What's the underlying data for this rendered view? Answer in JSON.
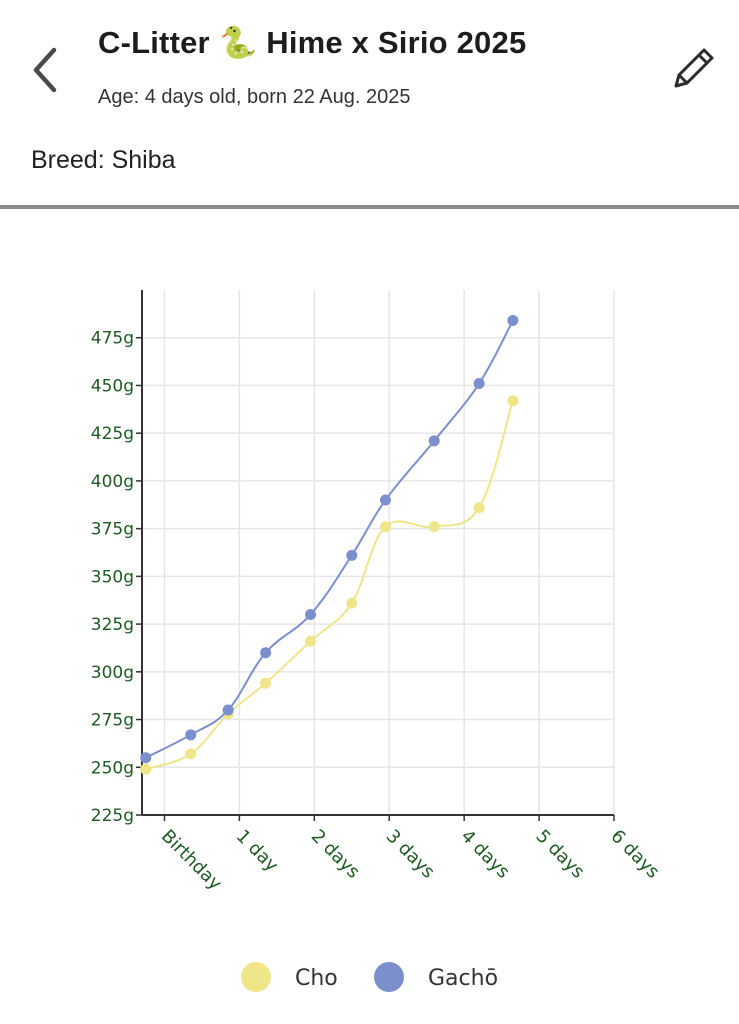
{
  "header": {
    "title": "C-Litter 🐍 Hime x Sirio 2025",
    "age": "Age: 4 days old, born 22 Aug. 2025",
    "breed": "Breed: Shiba",
    "back_icon": "chevron-left-icon",
    "edit_icon": "pencil-icon"
  },
  "chart_data": {
    "type": "line",
    "title": "",
    "xlabel": "",
    "ylabel": "",
    "x_ticks": [
      "Birthday",
      "1 day",
      "2 days",
      "3 days",
      "4 days",
      "5 days",
      "6 days"
    ],
    "y_ticks": [
      "225g",
      "250g",
      "275g",
      "300g",
      "325g",
      "350g",
      "375g",
      "400g",
      "425g",
      "450g",
      "475g"
    ],
    "xlim": [
      -0.3,
      6
    ],
    "ylim": [
      225,
      500
    ],
    "grid": true,
    "legend_position": "bottom",
    "series": [
      {
        "name": "Cho",
        "color": "#efe68a",
        "x": [
          -0.25,
          0.35,
          0.85,
          1.35,
          1.95,
          2.5,
          2.95,
          3.6,
          4.2,
          4.65
        ],
        "y": [
          249,
          257,
          278,
          294,
          316,
          336,
          376,
          376,
          386,
          442
        ]
      },
      {
        "name": "Gachō",
        "color": "#7b8fcc",
        "x": [
          -0.25,
          0.35,
          0.85,
          1.35,
          1.95,
          2.5,
          2.95,
          3.6,
          4.2,
          4.65
        ],
        "y": [
          255,
          267,
          280,
          310,
          330,
          361,
          390,
          421,
          451,
          484
        ]
      }
    ]
  }
}
